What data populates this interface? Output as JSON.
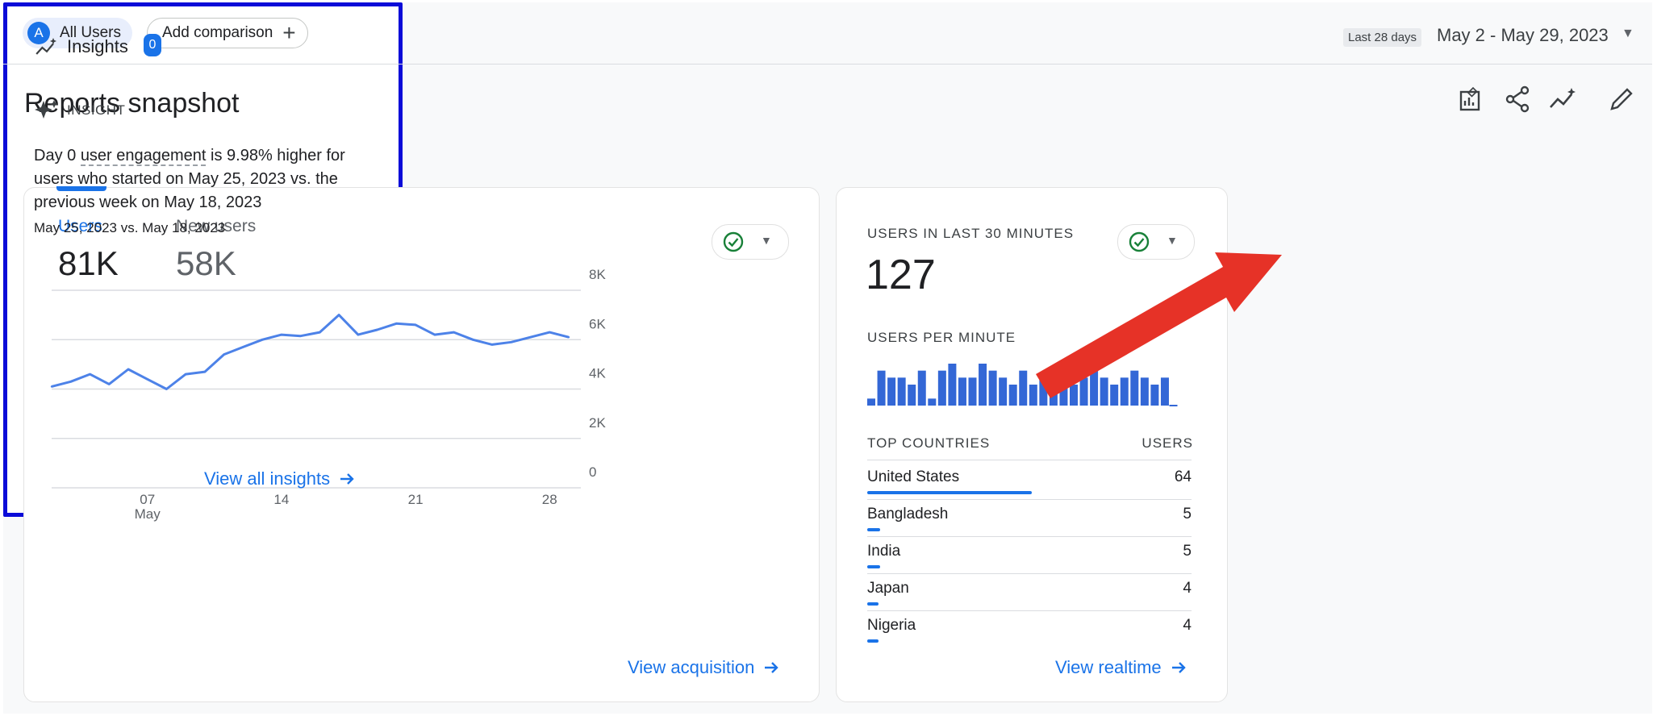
{
  "filters": {
    "segment_initial": "A",
    "segment_label": "All Users",
    "add_comparison_label": "Add comparison"
  },
  "date_range": {
    "tag": "Last 28 days",
    "value": "May 2 - May 29, 2023"
  },
  "page": {
    "title": "Reports snapshot"
  },
  "toolbar_icons": [
    "customize-report-icon",
    "share-icon",
    "insights-icon",
    "edit-icon"
  ],
  "overview_card": {
    "metrics": [
      {
        "label": "Users",
        "value": "81K"
      },
      {
        "label": "New users",
        "value": "58K"
      }
    ],
    "footer_link": "View acquisition"
  },
  "chart_data": {
    "type": "line",
    "series": [
      {
        "values": [
          4100,
          4300,
          4600,
          4200,
          4800,
          4400,
          4000,
          4600,
          4700,
          5400,
          5700,
          6000,
          6200,
          6150,
          6300,
          7000,
          6200,
          6400,
          6650,
          6600,
          6200,
          6300,
          6000,
          5800,
          5900,
          6100,
          6300,
          6100
        ]
      }
    ],
    "x": [
      "May 2",
      "May 3",
      "May 4",
      "May 5",
      "May 6",
      "May 7",
      "May 8",
      "May 9",
      "May 10",
      "May 11",
      "May 12",
      "May 13",
      "May 14",
      "May 15",
      "May 16",
      "May 17",
      "May 18",
      "May 19",
      "May 20",
      "May 21",
      "May 22",
      "May 23",
      "May 24",
      "May 25",
      "May 26",
      "May 27",
      "May 28",
      "May 29"
    ],
    "x_ticks": [
      {
        "label": "07",
        "sublabel": "May",
        "x": "May 7"
      },
      {
        "label": "14",
        "sublabel": "",
        "x": "May 14"
      },
      {
        "label": "21",
        "sublabel": "",
        "x": "May 21"
      },
      {
        "label": "28",
        "sublabel": "",
        "x": "May 28"
      }
    ],
    "y_ticks": [
      {
        "label": "8K",
        "value": 8000
      },
      {
        "label": "6K",
        "value": 6000
      },
      {
        "label": "4K",
        "value": 4000
      },
      {
        "label": "2K",
        "value": 2000
      },
      {
        "label": "0",
        "value": 0
      }
    ],
    "ylim": [
      0,
      8000
    ],
    "grid": true,
    "color": "#4d82e8"
  },
  "realtime_card": {
    "title": "USERS IN LAST 30 MINUTES",
    "value": "127",
    "per_minute_label": "USERS PER MINUTE",
    "per_minute_values": [
      1,
      5,
      4,
      4,
      3,
      5,
      1,
      5,
      6,
      4,
      4,
      6,
      5,
      4,
      3,
      5,
      3,
      4,
      3,
      4,
      3,
      4,
      5,
      4,
      3,
      4,
      5,
      4,
      3,
      4
    ],
    "countries_header": "TOP COUNTRIES",
    "users_header": "USERS",
    "countries": [
      {
        "name": "United States",
        "value": "64",
        "share": 1.0
      },
      {
        "name": "Bangladesh",
        "value": "5",
        "share": 0.08
      },
      {
        "name": "India",
        "value": "5",
        "share": 0.08
      },
      {
        "name": "Japan",
        "value": "4",
        "share": 0.06
      },
      {
        "name": "Nigeria",
        "value": "4",
        "share": 0.06
      }
    ],
    "footer_link": "View realtime"
  },
  "insights_card": {
    "title": "Insights",
    "count": "0",
    "kicker": "INSIGHT",
    "body_pre": "Day 0 ",
    "body_highlight": "user engagement",
    "body_post": " is 9.98% higher for users who started on May 25, 2023 vs. the previous week on May 18, 2023",
    "subtitle": "May 25, 2023 vs. May 18, 2023",
    "footer_link": "View all insights"
  },
  "colors": {
    "accent": "#1a73e8",
    "highlight_border": "#0b0bd8",
    "arrow": "#e63227",
    "status_ok": "#188038"
  }
}
